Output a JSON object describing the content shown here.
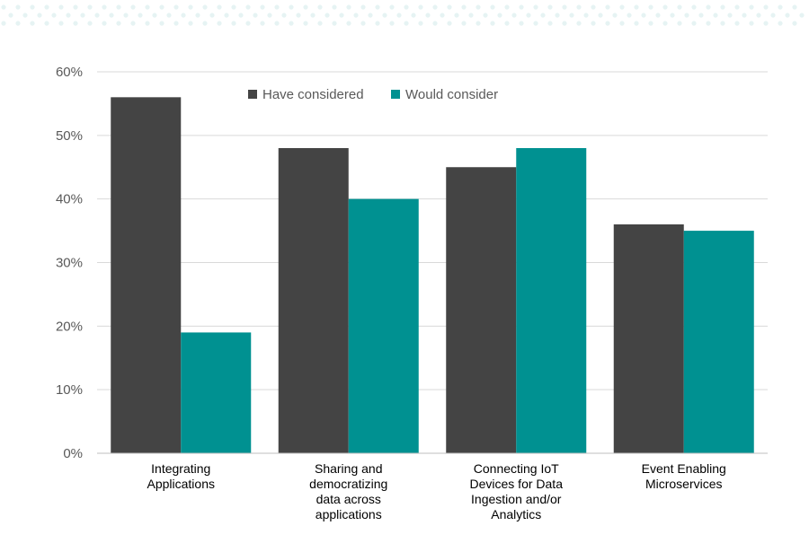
{
  "chart_data": {
    "type": "bar",
    "categories": [
      [
        "Integrating",
        "Applications"
      ],
      [
        "Sharing and",
        "democratizing",
        "data across",
        "applications"
      ],
      [
        "Connecting IoT",
        "Devices for Data",
        "Ingestion and/or",
        "Analytics"
      ],
      [
        "Event Enabling",
        "Microservices"
      ]
    ],
    "series": [
      {
        "name": "Have considered",
        "values": [
          0.56,
          0.48,
          0.45,
          0.36
        ],
        "color": "#444444"
      },
      {
        "name": "Would consider",
        "values": [
          0.19,
          0.4,
          0.48,
          0.35
        ],
        "color": "#009191"
      }
    ],
    "ylim": [
      0,
      0.6
    ],
    "yticks": [
      "0%",
      "10%",
      "20%",
      "30%",
      "40%",
      "50%",
      "60%"
    ],
    "grid": true,
    "legend_position": "top-center",
    "title": "",
    "xlabel": "",
    "ylabel": ""
  },
  "decoration": {
    "dot_color": "#e6f3f3"
  }
}
